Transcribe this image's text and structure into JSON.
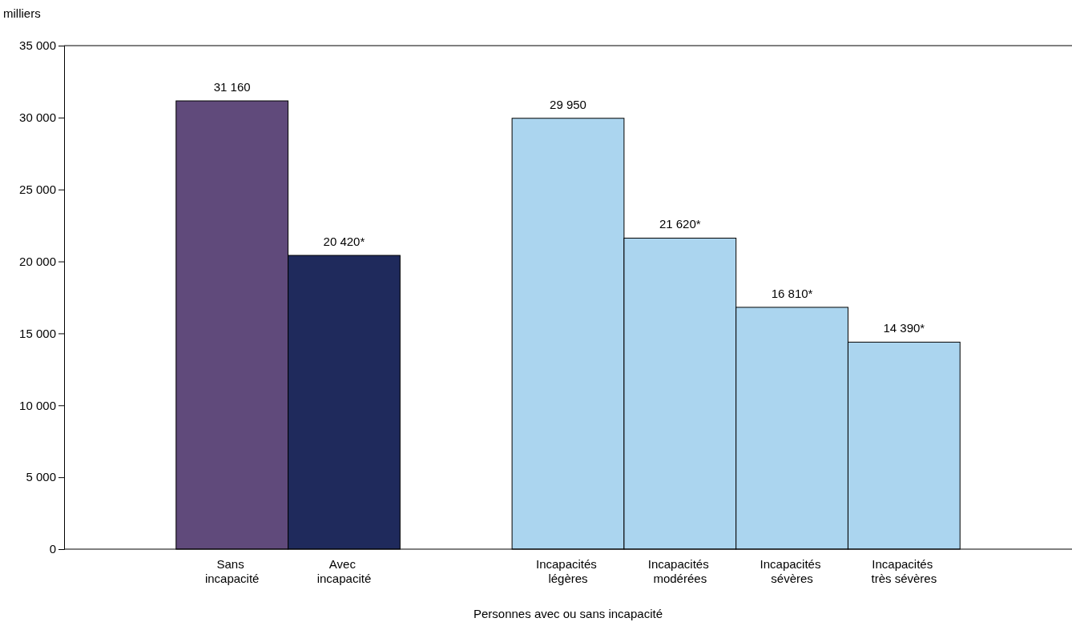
{
  "chart_data": {
    "type": "bar",
    "ylabel": "milliers",
    "xlabel": "Personnes avec ou sans incapacité",
    "categories": [
      null,
      "Sans\nincapacité",
      "Avec\nincapacité",
      null,
      "Incapacités\nlégères",
      "Incapacités\nmodérées",
      "Incapacités\nsévères",
      "Incapacités\ntrès sévères",
      null
    ],
    "values": [
      null,
      31160,
      20420,
      null,
      29950,
      21620,
      16810,
      14390,
      null
    ],
    "colors": [
      null,
      "#604a7b",
      "#1f2a5c",
      null,
      "#abd5ef",
      "#abd5ef",
      "#abd5ef",
      "#abd5ef",
      null
    ],
    "value_labels": [
      null,
      "31 160",
      "20 420*",
      null,
      "29 950",
      "21 620*",
      "16 810*",
      "14 390*",
      null
    ],
    "ylim": [
      0,
      35000
    ],
    "yticks": [
      {
        "value": 0,
        "label": "0"
      },
      {
        "value": 5000,
        "label": "5 000"
      },
      {
        "value": 10000,
        "label": "10 000"
      },
      {
        "value": 15000,
        "label": "15 000"
      },
      {
        "value": 20000,
        "label": "20 000"
      },
      {
        "value": 25000,
        "label": "25 000"
      },
      {
        "value": 30000,
        "label": "30 000"
      },
      {
        "value": 35000,
        "label": "35 000"
      }
    ],
    "grid": false
  }
}
